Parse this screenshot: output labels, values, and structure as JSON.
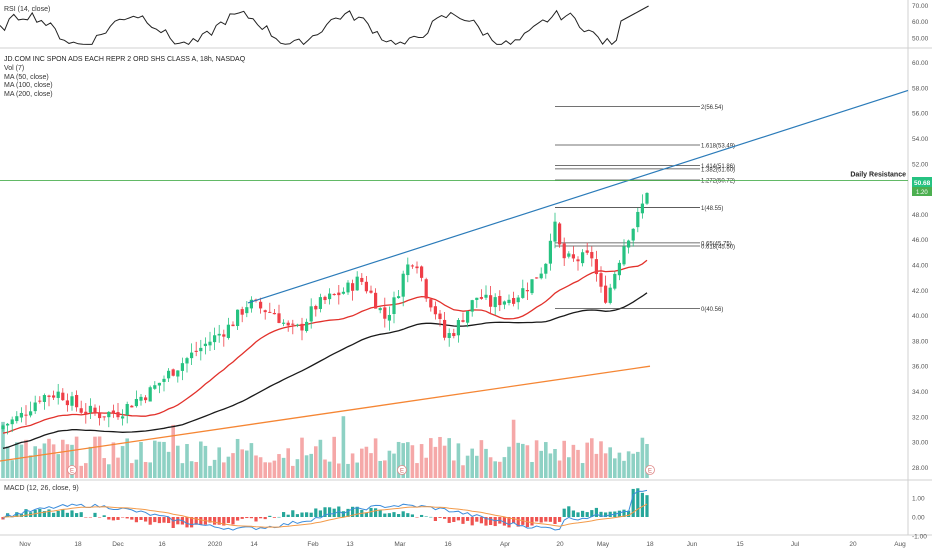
{
  "symbol_line": "JD.COM INC SPON ADS EACH REPR 2 ORD SHS CLASS A, 18h, NASDAQ",
  "indicators": [
    "Vol (7)",
    "MA (50, close)",
    "MA (100, close)",
    "MA (200, close)"
  ],
  "rsi_label": "RSI (14, close)",
  "rsi_ticks": [
    "70.00",
    "60.00",
    "50.00"
  ],
  "macd_label": "MACD (12, 26, close, 9)",
  "macd_ticks": [
    "1.00",
    "0.00",
    "-1.00"
  ],
  "earnings_marker": "E",
  "colors": {
    "up": "#26c281",
    "down": "#ef3e47",
    "ma50": "#e2312b",
    "ma100": "#1a1a1a",
    "ma200": "#f58634",
    "trend": "#2b7bb9",
    "resistance": "#4caf50",
    "vol_up": "#8ed1c4",
    "vol_down": "#f5a8a8"
  },
  "chart_data": {
    "type": "candlestick",
    "x_ticks": [
      "Nov",
      "18",
      "Dec",
      "16",
      "2020",
      "14",
      "Feb",
      "13",
      "Mar",
      "16",
      "Apr",
      "20",
      "May",
      "18",
      "Jun",
      "15",
      "Jul",
      "20",
      "Aug"
    ],
    "y_ticks": [
      "60.00",
      "58.00",
      "56.00",
      "54.00",
      "52.00",
      "50.00",
      "48.00",
      "46.00",
      "44.00",
      "42.00",
      "40.00",
      "38.00",
      "36.00",
      "34.00",
      "32.00",
      "30.00",
      "28.00"
    ],
    "ylim": [
      27,
      61
    ],
    "price_label": "50.68",
    "price_value": 50.68,
    "price_sub": "1.20",
    "fib_levels": [
      {
        "label": "2(56.54)",
        "value": 56.54
      },
      {
        "label": "1.618(53.49)",
        "value": 53.49
      },
      {
        "label": "1.414(51.86)",
        "value": 51.86
      },
      {
        "label": "1.382(51.60)",
        "value": 51.6
      },
      {
        "label": "1.272(50.72)",
        "value": 50.72
      },
      {
        "label": "1(48.55)",
        "value": 48.55
      },
      {
        "label": "0.65(45.75)",
        "value": 45.75
      },
      {
        "label": "0.618(45.50)",
        "value": 45.5
      },
      {
        "label": "0(40.56)",
        "value": 40.56
      }
    ],
    "resistance_label": "Daily Resistance",
    "resistance_value": 50.68
  }
}
